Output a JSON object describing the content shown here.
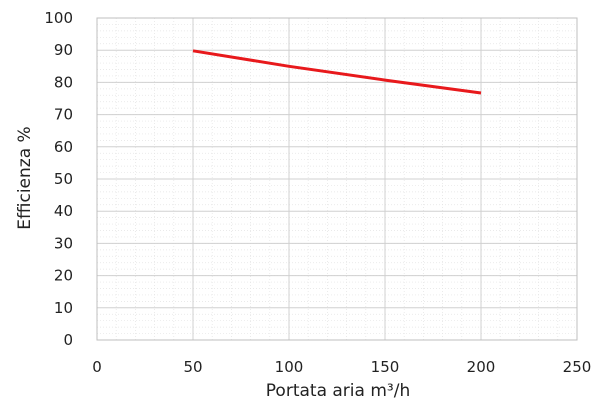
{
  "chart_data": {
    "type": "line",
    "title": "",
    "xlabel": "Portata aria m³/h",
    "ylabel": "Efficienza %",
    "xlim": [
      0,
      250
    ],
    "ylim": [
      0,
      100
    ],
    "xticks": [
      "0",
      "50",
      "100",
      "150",
      "200",
      "250"
    ],
    "yticks": [
      "0",
      "10",
      "20",
      "30",
      "40",
      "50",
      "60",
      "70",
      "80",
      "90",
      "100"
    ],
    "grid": true,
    "legend": "none",
    "series": [
      {
        "x": [
          50,
          100,
          150,
          200
        ],
        "y": [
          89.8,
          85,
          80.7,
          76.7
        ],
        "color": "#e8191c"
      }
    ]
  }
}
